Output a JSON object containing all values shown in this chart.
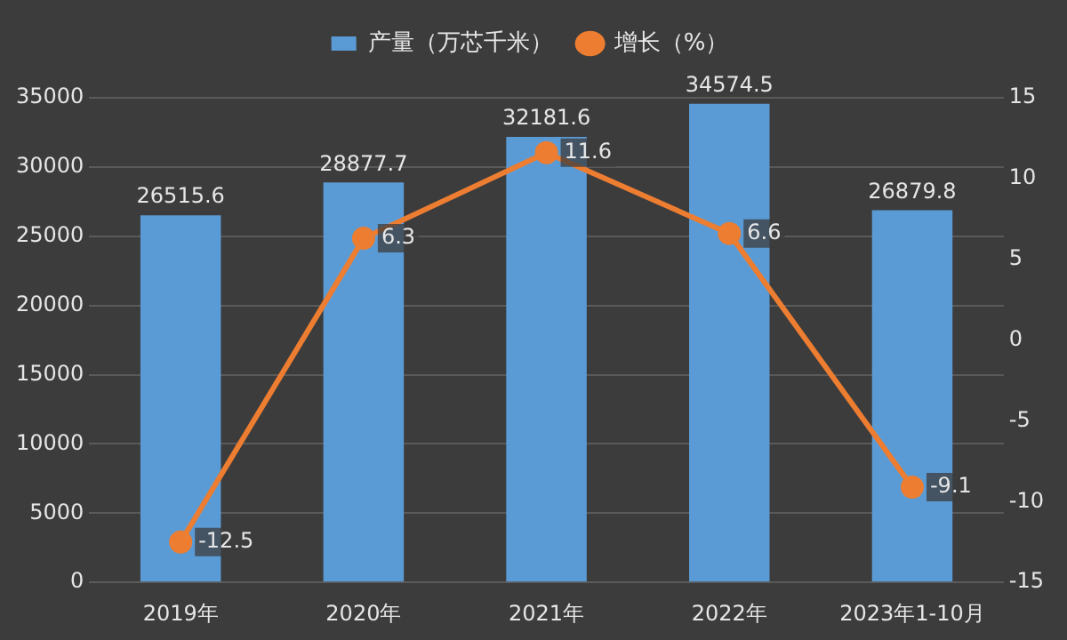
{
  "chart_data": {
    "type": "bar",
    "categories": [
      "2019年",
      "2020年",
      "2021年",
      "2022年",
      "2023年1-10月"
    ],
    "series": [
      {
        "name": "产量（万芯千米）",
        "color": "#5b9bd5",
        "values": [
          26515.6,
          28877.7,
          32181.6,
          34574.5,
          26879.8
        ]
      },
      {
        "name": "增长（%）",
        "type": "line",
        "axis": "y2",
        "color": "#ed7d31",
        "values": [
          -12.5,
          6.3,
          11.6,
          6.6,
          -9.1
        ]
      }
    ],
    "ylim": [
      0,
      35000
    ],
    "yticks": [
      0,
      5000,
      10000,
      15000,
      20000,
      25000,
      30000,
      35000
    ],
    "y2lim": [
      -15,
      15
    ],
    "y2ticks": [
      -15,
      -10,
      -5,
      0,
      5,
      10,
      15
    ],
    "grid": "y",
    "legend": "top",
    "marker": "circle",
    "data_labels": true
  }
}
